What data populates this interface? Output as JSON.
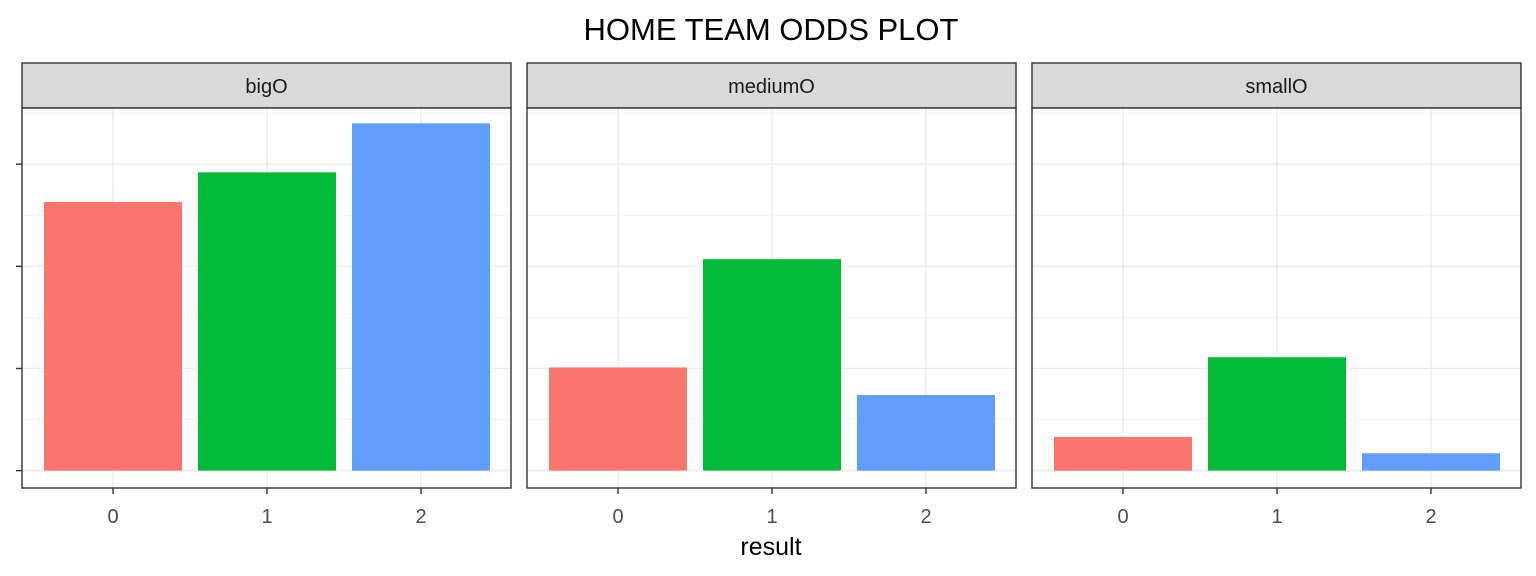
{
  "chart_data": {
    "type": "bar",
    "title": "HOME TEAM ODDS PLOT",
    "xlabel": "result",
    "ylabel": "",
    "facet_labels": [
      "bigO",
      "mediumO",
      "smallO"
    ],
    "categories": [
      "0",
      "1",
      "2"
    ],
    "colors": [
      "#F8766D",
      "#00BA38",
      "#619CFF"
    ],
    "ylim": [
      -0.17,
      3.55
    ],
    "y_ticks": [
      0,
      1,
      2,
      3
    ],
    "grid": true,
    "legend": "none",
    "panels": [
      {
        "facet": "bigO",
        "values": [
          2.63,
          2.92,
          3.4
        ]
      },
      {
        "facet": "mediumO",
        "values": [
          1.01,
          2.07,
          0.74
        ]
      },
      {
        "facet": "smallO",
        "values": [
          0.33,
          1.11,
          0.17
        ]
      }
    ]
  }
}
